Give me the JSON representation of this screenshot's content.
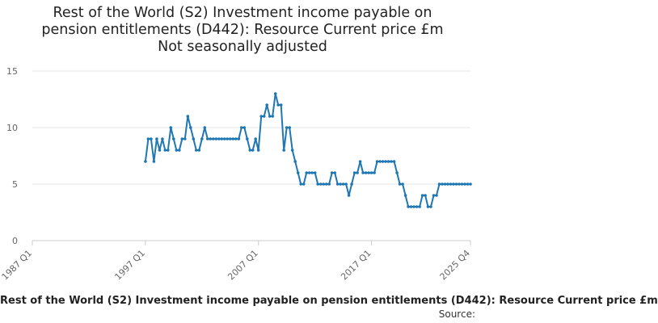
{
  "chart_data": {
    "type": "line",
    "title_lines": [
      "Rest of the World (S2) Investment income payable on",
      "pension entitlements (D442): Resource Current price £m",
      "Not seasonally adjusted"
    ],
    "xlabel": "",
    "ylabel": "",
    "ylim": [
      0,
      15
    ],
    "yticks": [
      0,
      5,
      10,
      15
    ],
    "xticks": [
      "1987 Q1",
      "1997 Q1",
      "2007 Q1",
      "2017 Q1",
      "2025 Q4"
    ],
    "grid": true,
    "legend_position": "bottom",
    "series": [
      {
        "name": "Rest of the World (S2) Investment income payable on pension entitlements (D442): Resource Current price £m",
        "color": "#1f77b4",
        "x": [
          "1997 Q1",
          "1997 Q2",
          "1997 Q3",
          "1997 Q4",
          "1998 Q1",
          "1998 Q2",
          "1998 Q3",
          "1998 Q4",
          "1999 Q1",
          "1999 Q2",
          "1999 Q3",
          "1999 Q4",
          "2000 Q1",
          "2000 Q2",
          "2000 Q3",
          "2000 Q4",
          "2001 Q1",
          "2001 Q2",
          "2001 Q3",
          "2001 Q4",
          "2002 Q1",
          "2002 Q2",
          "2002 Q3",
          "2002 Q4",
          "2003 Q1",
          "2003 Q2",
          "2003 Q3",
          "2003 Q4",
          "2004 Q1",
          "2004 Q2",
          "2004 Q3",
          "2004 Q4",
          "2005 Q1",
          "2005 Q2",
          "2005 Q3",
          "2005 Q4",
          "2006 Q1",
          "2006 Q2",
          "2006 Q3",
          "2006 Q4",
          "2007 Q1",
          "2007 Q2",
          "2007 Q3",
          "2007 Q4",
          "2008 Q1",
          "2008 Q2",
          "2008 Q3",
          "2008 Q4",
          "2009 Q1",
          "2009 Q2",
          "2009 Q3",
          "2009 Q4",
          "2010 Q1",
          "2010 Q2",
          "2010 Q3",
          "2010 Q4",
          "2011 Q1",
          "2011 Q2",
          "2011 Q3",
          "2011 Q4",
          "2012 Q1",
          "2012 Q2",
          "2012 Q3",
          "2012 Q4",
          "2013 Q1",
          "2013 Q2",
          "2013 Q3",
          "2013 Q4",
          "2014 Q1",
          "2014 Q2",
          "2014 Q3",
          "2014 Q4",
          "2015 Q1",
          "2015 Q2",
          "2015 Q3",
          "2015 Q4",
          "2016 Q1",
          "2016 Q2",
          "2016 Q3",
          "2016 Q4",
          "2017 Q1",
          "2017 Q2",
          "2017 Q3",
          "2017 Q4",
          "2018 Q1",
          "2018 Q2",
          "2018 Q3",
          "2018 Q4",
          "2019 Q1",
          "2019 Q2",
          "2019 Q3",
          "2019 Q4",
          "2020 Q1",
          "2020 Q2",
          "2020 Q3",
          "2020 Q4",
          "2021 Q1",
          "2021 Q2",
          "2021 Q3",
          "2021 Q4",
          "2022 Q1",
          "2022 Q2",
          "2022 Q3",
          "2022 Q4",
          "2023 Q1",
          "2023 Q2",
          "2023 Q3",
          "2023 Q4",
          "2024 Q1",
          "2024 Q2",
          "2024 Q3",
          "2024 Q4",
          "2025 Q1",
          "2025 Q2",
          "2025 Q3",
          "2025 Q4"
        ],
        "values": [
          7,
          9,
          9,
          7,
          9,
          8,
          9,
          8,
          8,
          10,
          9,
          8,
          8,
          9,
          9,
          11,
          10,
          9,
          8,
          8,
          9,
          10,
          9,
          9,
          9,
          9,
          9,
          9,
          9,
          9,
          9,
          9,
          9,
          9,
          10,
          10,
          9,
          8,
          8,
          9,
          8,
          11,
          11,
          12,
          11,
          11,
          13,
          12,
          12,
          8,
          10,
          10,
          8,
          7,
          6,
          5,
          5,
          6,
          6,
          6,
          6,
          5,
          5,
          5,
          5,
          5,
          6,
          6,
          5,
          5,
          5,
          5,
          4,
          5,
          6,
          6,
          7,
          6,
          6,
          6,
          6,
          6,
          7,
          7,
          7,
          7,
          7,
          7,
          7,
          6,
          5,
          5,
          4,
          3,
          3,
          3,
          3,
          3,
          4,
          4,
          3,
          3,
          4,
          4,
          5,
          5,
          5,
          5,
          5,
          5,
          5,
          5,
          5,
          5,
          5,
          5
        ]
      }
    ]
  },
  "source_label": "Source:"
}
